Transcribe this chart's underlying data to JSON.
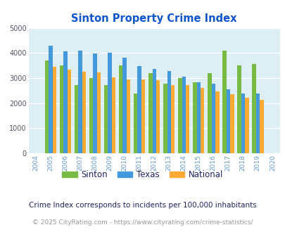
{
  "title": "Sinton Property Crime Index",
  "years": [
    2004,
    2005,
    2006,
    2007,
    2008,
    2009,
    2010,
    2011,
    2012,
    2013,
    2014,
    2015,
    2016,
    2017,
    2018,
    2019,
    2020
  ],
  "sinton": [
    null,
    3700,
    3500,
    2720,
    3000,
    2720,
    3500,
    2390,
    3200,
    2770,
    3000,
    2840,
    3200,
    4100,
    3500,
    3550,
    null
  ],
  "texas": [
    null,
    4300,
    4070,
    4100,
    3990,
    4020,
    3820,
    3480,
    3360,
    3270,
    3040,
    2840,
    2770,
    2560,
    2380,
    2380,
    null
  ],
  "national": [
    null,
    3440,
    3340,
    3240,
    3210,
    3030,
    2950,
    2930,
    2900,
    2720,
    2710,
    2600,
    2470,
    2360,
    2200,
    2130,
    null
  ],
  "sinton_color": "#77bb44",
  "texas_color": "#4499dd",
  "national_color": "#ffaa33",
  "bg_color": "#ddeef5",
  "title_color": "#1155cc",
  "ylim": [
    0,
    5000
  ],
  "yticks": [
    0,
    1000,
    2000,
    3000,
    4000,
    5000
  ],
  "note": "Crime Index corresponds to incidents per 100,000 inhabitants",
  "footer": "© 2025 CityRating.com - https://www.cityrating.com/crime-statistics/",
  "note_color": "#222266",
  "footer_color": "#999999",
  "xtick_color": "#6699cc"
}
